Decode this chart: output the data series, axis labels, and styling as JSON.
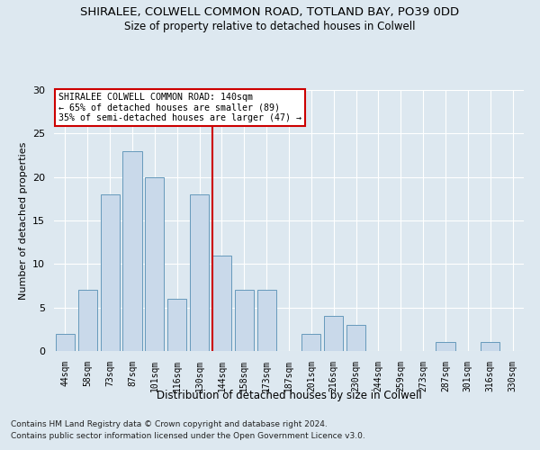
{
  "title_line1": "SHIRALEE, COLWELL COMMON ROAD, TOTLAND BAY, PO39 0DD",
  "title_line2": "Size of property relative to detached houses in Colwell",
  "xlabel": "Distribution of detached houses by size in Colwell",
  "ylabel": "Number of detached properties",
  "categories": [
    "44sqm",
    "58sqm",
    "73sqm",
    "87sqm",
    "101sqm",
    "116sqm",
    "130sqm",
    "144sqm",
    "158sqm",
    "173sqm",
    "187sqm",
    "201sqm",
    "216sqm",
    "230sqm",
    "244sqm",
    "259sqm",
    "273sqm",
    "287sqm",
    "301sqm",
    "316sqm",
    "330sqm"
  ],
  "values": [
    2,
    7,
    18,
    23,
    20,
    6,
    18,
    11,
    7,
    7,
    0,
    2,
    4,
    3,
    0,
    0,
    0,
    1,
    0,
    1,
    0
  ],
  "bar_color": "#c9d9ea",
  "bar_edgecolor": "#6699bb",
  "background_color": "#dde8f0",
  "grid_color": "#ffffff",
  "red_line_index": 7,
  "annotation_title": "SHIRALEE COLWELL COMMON ROAD: 140sqm",
  "annotation_line2": "← 65% of detached houses are smaller (89)",
  "annotation_line3": "35% of semi-detached houses are larger (47) →",
  "annotation_box_color": "#ffffff",
  "annotation_border_color": "#cc0000",
  "red_line_color": "#cc0000",
  "ylim": [
    0,
    30
  ],
  "footer1": "Contains HM Land Registry data © Crown copyright and database right 2024.",
  "footer2": "Contains public sector information licensed under the Open Government Licence v3.0."
}
